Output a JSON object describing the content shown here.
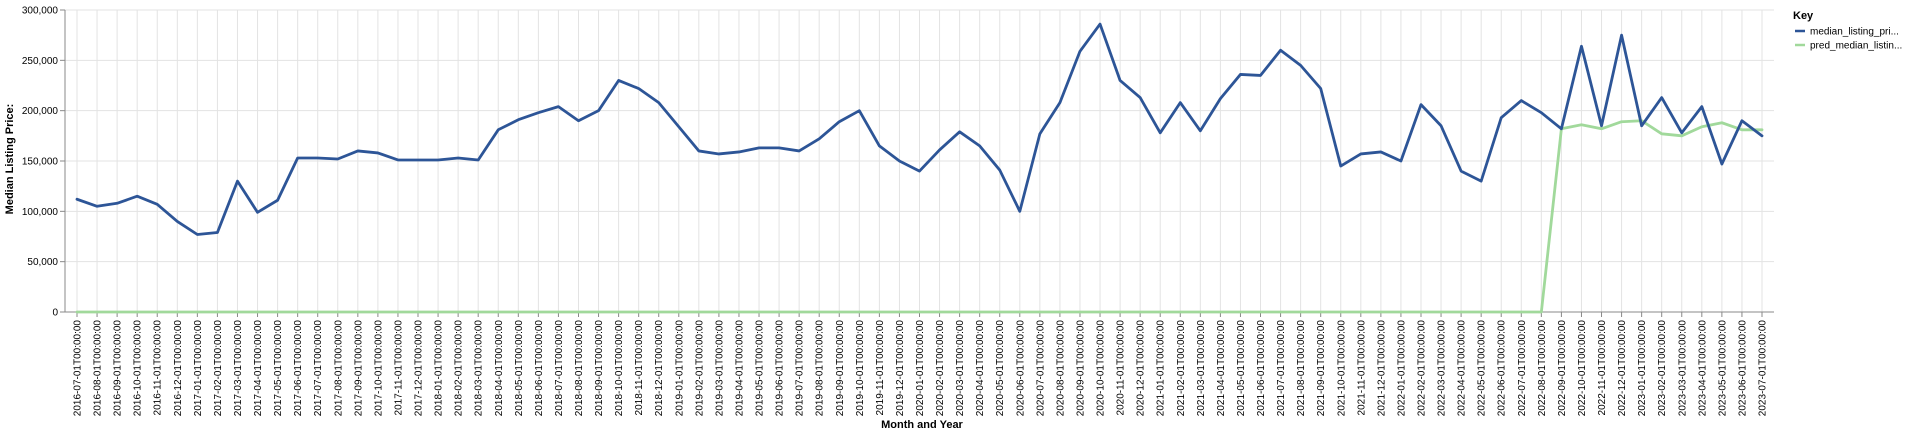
{
  "chart_data": {
    "type": "line",
    "xlabel": "Month and Year",
    "ylabel": "Median Listing Price:",
    "ylim": [
      0,
      300000
    ],
    "y_ticks": [
      "0",
      "50,000",
      "100,000",
      "150,000",
      "200,000",
      "250,000",
      "300,000"
    ],
    "y_tick_values": [
      0,
      50000,
      100000,
      150000,
      200000,
      250000,
      300000
    ],
    "grid": true,
    "legend": {
      "title": "Key",
      "position": "top-right"
    },
    "x": [
      "2016-07-01T00:00:00",
      "2016-08-01T00:00:00",
      "2016-09-01T00:00:00",
      "2016-10-01T00:00:00",
      "2016-11-01T00:00:00",
      "2016-12-01T00:00:00",
      "2017-01-01T00:00:00",
      "2017-02-01T00:00:00",
      "2017-03-01T00:00:00",
      "2017-04-01T00:00:00",
      "2017-05-01T00:00:00",
      "2017-06-01T00:00:00",
      "2017-07-01T00:00:00",
      "2017-08-01T00:00:00",
      "2017-09-01T00:00:00",
      "2017-10-01T00:00:00",
      "2017-11-01T00:00:00",
      "2017-12-01T00:00:00",
      "2018-01-01T00:00:00",
      "2018-02-01T00:00:00",
      "2018-03-01T00:00:00",
      "2018-04-01T00:00:00",
      "2018-05-01T00:00:00",
      "2018-06-01T00:00:00",
      "2018-07-01T00:00:00",
      "2018-08-01T00:00:00",
      "2018-09-01T00:00:00",
      "2018-10-01T00:00:00",
      "2018-11-01T00:00:00",
      "2018-12-01T00:00:00",
      "2019-01-01T00:00:00",
      "2019-02-01T00:00:00",
      "2019-03-01T00:00:00",
      "2019-04-01T00:00:00",
      "2019-05-01T00:00:00",
      "2019-06-01T00:00:00",
      "2019-07-01T00:00:00",
      "2019-08-01T00:00:00",
      "2019-09-01T00:00:00",
      "2019-10-01T00:00:00",
      "2019-11-01T00:00:00",
      "2019-12-01T00:00:00",
      "2020-01-01T00:00:00",
      "2020-02-01T00:00:00",
      "2020-03-01T00:00:00",
      "2020-04-01T00:00:00",
      "2020-05-01T00:00:00",
      "2020-06-01T00:00:00",
      "2020-07-01T00:00:00",
      "2020-08-01T00:00:00",
      "2020-09-01T00:00:00",
      "2020-10-01T00:00:00",
      "2020-11-01T00:00:00",
      "2020-12-01T00:00:00",
      "2021-01-01T00:00:00",
      "2021-02-01T00:00:00",
      "2021-03-01T00:00:00",
      "2021-04-01T00:00:00",
      "2021-05-01T00:00:00",
      "2021-06-01T00:00:00",
      "2021-07-01T00:00:00",
      "2021-08-01T00:00:00",
      "2021-09-01T00:00:00",
      "2021-10-01T00:00:00",
      "2021-11-01T00:00:00",
      "2021-12-01T00:00:00",
      "2022-01-01T00:00:00",
      "2022-02-01T00:00:00",
      "2022-03-01T00:00:00",
      "2022-04-01T00:00:00",
      "2022-05-01T00:00:00",
      "2022-06-01T00:00:00",
      "2022-07-01T00:00:00",
      "2022-08-01T00:00:00",
      "2022-09-01T00:00:00",
      "2022-10-01T00:00:00",
      "2022-11-01T00:00:00",
      "2022-12-01T00:00:00",
      "2023-01-01T00:00:00",
      "2023-02-01T00:00:00",
      "2023-03-01T00:00:00",
      "2023-04-01T00:00:00",
      "2023-05-01T00:00:00",
      "2023-06-01T00:00:00",
      "2023-07-01T00:00:00"
    ],
    "series": [
      {
        "name": "median_listing_pri...",
        "color": "#2d5597",
        "values": [
          112000,
          105000,
          108000,
          115000,
          107000,
          90000,
          77000,
          79000,
          130000,
          99000,
          111000,
          153000,
          153000,
          152000,
          160000,
          158000,
          151000,
          151000,
          151000,
          153000,
          151000,
          181000,
          191000,
          198000,
          204000,
          190000,
          200000,
          230000,
          222000,
          208000,
          184000,
          160000,
          157000,
          159000,
          163000,
          163000,
          160000,
          172000,
          189000,
          200000,
          165000,
          150000,
          140000,
          161000,
          179000,
          165000,
          141000,
          100000,
          177000,
          208000,
          259000,
          286000,
          230000,
          213000,
          178000,
          208000,
          180000,
          212000,
          236000,
          235000,
          260000,
          245000,
          222000,
          145000,
          157000,
          159000,
          150000,
          206000,
          185000,
          140000,
          130000,
          193000,
          210000,
          198000,
          182000,
          264000,
          185000,
          275000,
          185000,
          213000,
          178000,
          204000,
          147000,
          190000,
          175000
        ]
      },
      {
        "name": "pred_median_listin...",
        "color": "#a1d99b",
        "values": [
          0,
          0,
          0,
          0,
          0,
          0,
          0,
          0,
          0,
          0,
          0,
          0,
          0,
          0,
          0,
          0,
          0,
          0,
          0,
          0,
          0,
          0,
          0,
          0,
          0,
          0,
          0,
          0,
          0,
          0,
          0,
          0,
          0,
          0,
          0,
          0,
          0,
          0,
          0,
          0,
          0,
          0,
          0,
          0,
          0,
          0,
          0,
          0,
          0,
          0,
          0,
          0,
          0,
          0,
          0,
          0,
          0,
          0,
          0,
          0,
          0,
          0,
          0,
          0,
          0,
          0,
          0,
          0,
          0,
          0,
          0,
          0,
          0,
          0,
          182000,
          186000,
          182000,
          189000,
          190000,
          177000,
          175000,
          184000,
          188000,
          181000,
          181000
        ]
      }
    ]
  }
}
